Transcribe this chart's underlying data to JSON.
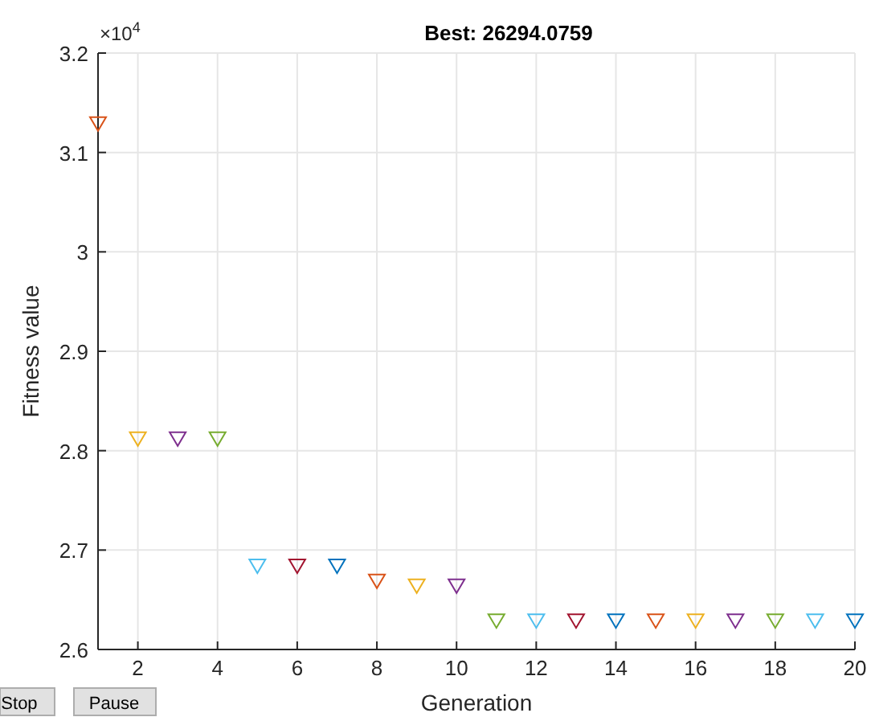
{
  "chart_data": {
    "type": "scatter",
    "title": "Best: 26294.0759",
    "xlabel": "Generation",
    "ylabel": "Fitness value",
    "x": [
      1,
      2,
      3,
      4,
      5,
      6,
      7,
      8,
      9,
      10,
      11,
      12,
      13,
      14,
      15,
      16,
      17,
      18,
      19,
      20
    ],
    "series": [
      {
        "values": [
          3.129,
          2.812,
          2.812,
          2.812,
          2.684,
          2.684,
          2.684,
          2.669,
          2.664,
          2.664,
          2.629,
          2.629,
          2.629,
          2.629,
          2.629,
          2.629,
          2.629,
          2.629,
          2.629,
          2.629
        ],
        "colors": [
          "#d95319",
          "#edb120",
          "#7e2f8e",
          "#77ac30",
          "#4dbeee",
          "#a2142f",
          "#0072bd",
          "#d95319",
          "#edb120",
          "#7e2f8e",
          "#77ac30",
          "#4dbeee",
          "#a2142f",
          "#0072bd",
          "#d95319",
          "#edb120",
          "#7e2f8e",
          "#77ac30",
          "#4dbeee",
          "#0072bd"
        ]
      }
    ],
    "xlim": [
      1,
      20
    ],
    "xticks": [
      2,
      4,
      6,
      8,
      10,
      12,
      14,
      16,
      18,
      20
    ],
    "ylim": [
      2.6,
      3.2
    ],
    "yticks": [
      2.6,
      2.7,
      2.8,
      2.9,
      3,
      3.1,
      3.2
    ],
    "grid": true,
    "marker": "triangle",
    "annotations": [
      "×10$^{4}$",
      "Stop",
      "Pause"
    ]
  }
}
